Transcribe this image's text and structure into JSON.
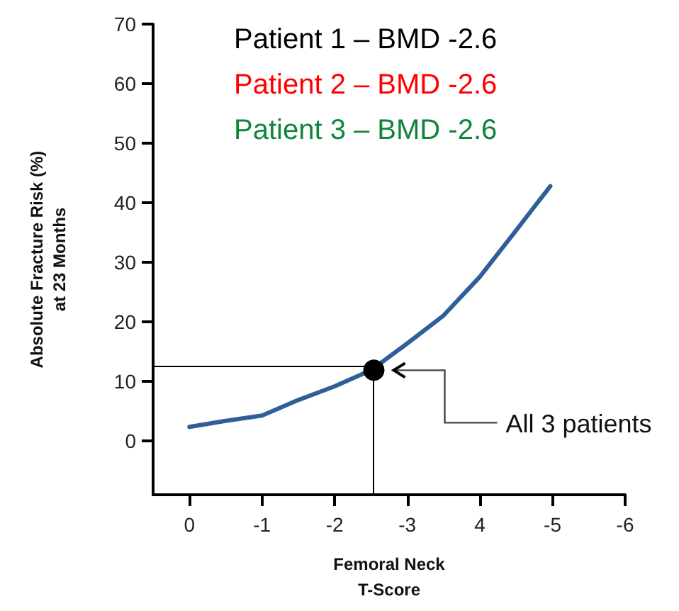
{
  "chart_data": {
    "type": "line",
    "xlabel": "Femoral Neck\nT-Score",
    "ylabel": "Absolute Fracture Risk (%)\nat 23 Months",
    "xlim": [
      0.5,
      -6
    ],
    "xticks": [
      0,
      -1,
      -2,
      -3,
      {
        "value": -4,
        "label": "4"
      },
      -5,
      -6
    ],
    "ylim": [
      -9,
      70
    ],
    "yticks": [
      0,
      10,
      20,
      30,
      40,
      50,
      60,
      70
    ],
    "grid": false,
    "series": [
      {
        "color": "#2e5f98",
        "x": [
          0,
          -0.5,
          -1,
          -1.5,
          -2,
          -2.5,
          -3,
          -3.5,
          -4,
          -4.5,
          -4.97
        ],
        "values": [
          2.4,
          3.4,
          4.3,
          6.9,
          9.2,
          11.9,
          16.4,
          21.1,
          27.6,
          35.4,
          42.8
        ],
        "marker": "none"
      },
      {
        "type": "scatter",
        "color": "#000000",
        "x": [
          -2.54
        ],
        "values": [
          11.9
        ],
        "marker": "circle"
      }
    ],
    "ref_lines": [
      {
        "axis": "y",
        "value": 12.5,
        "color": "#000000"
      },
      {
        "axis": "x",
        "value": -2.54,
        "color": "#000000"
      }
    ],
    "annotations": [
      "Patient 1 – BMD -2.6",
      "Patient 2 – BMD -2.6",
      "Patient 3 – BMD -2.6",
      "All 3 patients"
    ]
  }
}
